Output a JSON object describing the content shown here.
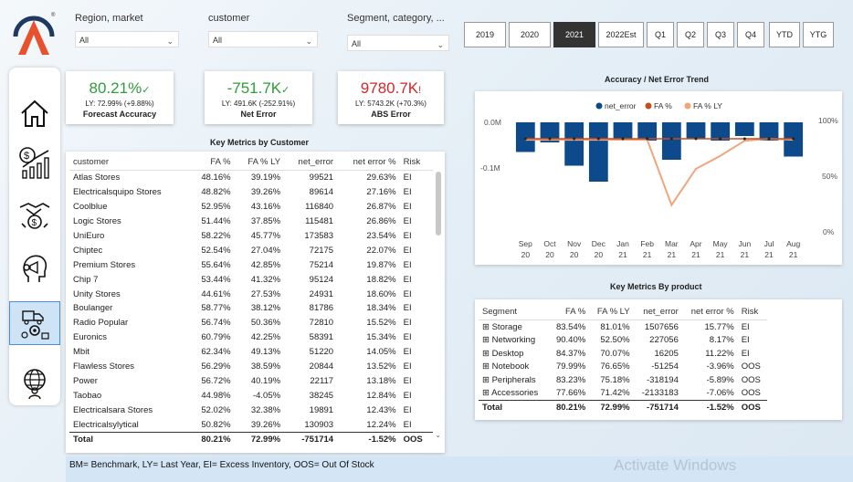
{
  "filters": [
    {
      "label": "Region, market",
      "value": "All"
    },
    {
      "label": "customer",
      "value": "All"
    },
    {
      "label": "Segment, category, ...",
      "value": "All"
    }
  ],
  "period_buttons": [
    "2019",
    "2020",
    "2021",
    "2022Est",
    "Q1",
    "Q2",
    "Q3",
    "Q4",
    "YTD",
    "YTG"
  ],
  "selected_period": "2021",
  "kpis": [
    {
      "value": "80.21%",
      "mark": "✓",
      "ly": "LY: 72.99% (+9.88%)",
      "title": "Forecast Accuracy",
      "color": "#2e9d3a"
    },
    {
      "value": "-751.7K",
      "mark": "✓",
      "ly": "LY: 491.6K (-252.91%)",
      "title": "Net Error",
      "color": "#2e9d3a"
    },
    {
      "value": "9780.7K",
      "mark": "!",
      "ly": "LY: 5743.2K (+70.3%)",
      "title": "ABS Error",
      "color": "#d62728"
    }
  ],
  "customer_table": {
    "title": "Key Metrics by Customer",
    "headers": [
      "customer",
      "FA %",
      "FA % LY",
      "net_error",
      "net error %",
      "Risk"
    ],
    "rows": [
      [
        "Atlas Stores",
        "48.16%",
        "39.19%",
        "99521",
        "29.63%",
        "EI"
      ],
      [
        "Electricalsquipo Stores",
        "48.82%",
        "39.26%",
        "89614",
        "27.16%",
        "EI"
      ],
      [
        "Coolblue",
        "52.95%",
        "43.16%",
        "116840",
        "26.87%",
        "EI"
      ],
      [
        "Logic Stores",
        "51.44%",
        "37.85%",
        "115481",
        "26.86%",
        "EI"
      ],
      [
        "UniEuro",
        "58.22%",
        "45.77%",
        "173583",
        "23.54%",
        "EI"
      ],
      [
        "Chiptec",
        "52.54%",
        "27.04%",
        "72175",
        "22.07%",
        "EI"
      ],
      [
        "Premium Stores",
        "55.64%",
        "42.85%",
        "75214",
        "19.87%",
        "EI"
      ],
      [
        "Chip 7",
        "53.44%",
        "41.32%",
        "95124",
        "18.82%",
        "EI"
      ],
      [
        "Unity Stores",
        "44.61%",
        "27.53%",
        "24931",
        "18.60%",
        "EI"
      ],
      [
        "Boulanger",
        "58.77%",
        "38.12%",
        "81786",
        "18.34%",
        "EI"
      ],
      [
        "Radio Popular",
        "56.74%",
        "50.36%",
        "72810",
        "15.52%",
        "EI"
      ],
      [
        "Euronics",
        "60.79%",
        "42.25%",
        "58391",
        "15.34%",
        "EI"
      ],
      [
        "Mbit",
        "62.34%",
        "49.13%",
        "51220",
        "14.05%",
        "EI"
      ],
      [
        "Flawless Stores",
        "56.29%",
        "38.59%",
        "20844",
        "13.52%",
        "EI"
      ],
      [
        "Power",
        "56.72%",
        "40.19%",
        "22117",
        "13.18%",
        "EI"
      ],
      [
        "Taobao",
        "44.98%",
        "-4.05%",
        "38245",
        "12.84%",
        "EI"
      ],
      [
        "Electricalsara Stores",
        "52.02%",
        "32.38%",
        "19891",
        "12.43%",
        "EI"
      ],
      [
        "Electricalsylytical",
        "50.82%",
        "39.26%",
        "130903",
        "12.24%",
        "EI"
      ]
    ],
    "total": [
      "Total",
      "80.21%",
      "72.99%",
      "-751714",
      "-1.52%",
      "OOS"
    ]
  },
  "chart_data": {
    "type": "bar",
    "title": "Accuracy / Net Error Trend",
    "legend": [
      "net_error",
      "FA %",
      "FA % LY"
    ],
    "legend_position": "top",
    "categories": [
      [
        "Sep",
        "20"
      ],
      [
        "Oct",
        "20"
      ],
      [
        "Nov",
        "20"
      ],
      [
        "Dec",
        "20"
      ],
      [
        "Jan",
        "21"
      ],
      [
        "Feb",
        "21"
      ],
      [
        "Mar",
        "21"
      ],
      [
        "Apr",
        "21"
      ],
      [
        "May",
        "21"
      ],
      [
        "Jun",
        "21"
      ],
      [
        "Jul",
        "21"
      ],
      [
        "Aug",
        "21"
      ]
    ],
    "y_left_ticks": [
      "0.0M",
      "-0.1M"
    ],
    "y_right_ticks": [
      "100%",
      "50%",
      "0%"
    ],
    "net_error_M": [
      -0.065,
      -0.044,
      -0.095,
      -0.13,
      -0.04,
      -0.04,
      -0.082,
      -0.035,
      -0.04,
      -0.03,
      -0.04,
      -0.075
    ],
    "fa_pct": [
      80,
      80,
      80,
      80,
      80,
      80,
      80,
      80,
      80,
      80,
      80,
      80
    ],
    "fa_ly_pct": [
      79,
      79,
      79,
      79,
      79,
      79,
      14,
      50,
      63,
      78,
      80,
      79
    ],
    "colors": {
      "net_error": "#0d4a8c",
      "fa": "#c0501f",
      "fa_ly": "#f2a57a"
    }
  },
  "product_table": {
    "title": "Key Metrics By product",
    "headers": [
      "Segment",
      "FA %",
      "FA % LY",
      "net_error",
      "net error %",
      "Risk"
    ],
    "rows": [
      [
        "Storage",
        "83.54%",
        "81.01%",
        "1507656",
        "15.77%",
        "EI"
      ],
      [
        "Networking",
        "90.40%",
        "52.50%",
        "227056",
        "8.17%",
        "EI"
      ],
      [
        "Desktop",
        "84.37%",
        "70.07%",
        "16205",
        "11.22%",
        "EI"
      ],
      [
        "Notebook",
        "79.99%",
        "76.65%",
        "-51254",
        "-3.96%",
        "OOS"
      ],
      [
        "Peripherals",
        "83.23%",
        "75.18%",
        "-318194",
        "-5.89%",
        "OOS"
      ],
      [
        "Accessories",
        "77.66%",
        "71.42%",
        "-2133183",
        "-7.06%",
        "OOS"
      ]
    ],
    "total": [
      "Total",
      "80.21%",
      "72.99%",
      "-751714",
      "-1.52%",
      "OOS"
    ]
  },
  "footer": "BM= Benchmark, LY= Last Year, EI= Excess Inventory, OOS= Out Of Stock",
  "watermark": "Activate Windows",
  "nav_icons": [
    "home-icon",
    "dollar-growth-icon",
    "handshake-money-icon",
    "marketing-head-icon",
    "supply-chain-icon",
    "global-network-icon"
  ]
}
